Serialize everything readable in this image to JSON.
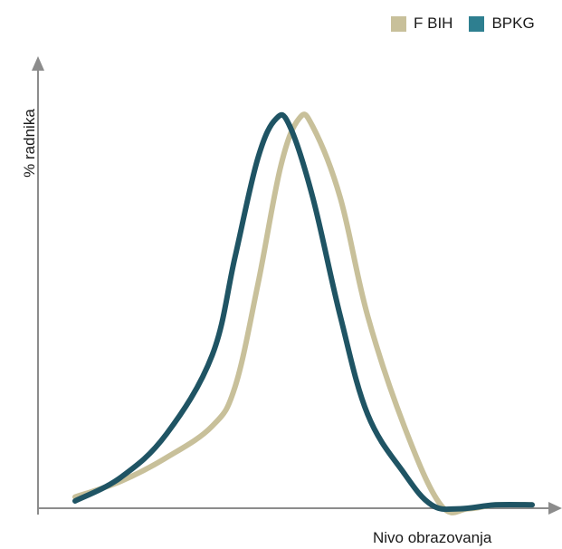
{
  "chart_data": {
    "type": "line",
    "title": "",
    "xlabel": "Nivo obrazovanja",
    "ylabel": "% radnika",
    "xlim": [
      0,
      100
    ],
    "ylim": [
      0,
      100
    ],
    "grid": false,
    "legend_position": "top-right",
    "series": [
      {
        "name": "F BIH",
        "color": "#c8c09a",
        "points": [
          [
            0,
            4
          ],
          [
            10,
            8
          ],
          [
            20,
            14
          ],
          [
            30,
            22
          ],
          [
            35,
            32
          ],
          [
            40,
            58
          ],
          [
            45,
            88
          ],
          [
            49,
            100
          ],
          [
            52,
            98
          ],
          [
            58,
            80
          ],
          [
            64,
            50
          ],
          [
            72,
            22
          ],
          [
            80,
            2
          ],
          [
            86,
            1
          ],
          [
            92,
            2
          ],
          [
            100,
            2
          ]
        ]
      },
      {
        "name": "BPKG",
        "color": "#1f5464",
        "points": [
          [
            0,
            3
          ],
          [
            10,
            9
          ],
          [
            20,
            20
          ],
          [
            30,
            40
          ],
          [
            35,
            65
          ],
          [
            40,
            90
          ],
          [
            44,
            100
          ],
          [
            47,
            98
          ],
          [
            52,
            80
          ],
          [
            58,
            50
          ],
          [
            64,
            25
          ],
          [
            72,
            10
          ],
          [
            78,
            2
          ],
          [
            84,
            1
          ],
          [
            92,
            2
          ],
          [
            100,
            2
          ]
        ]
      }
    ]
  }
}
